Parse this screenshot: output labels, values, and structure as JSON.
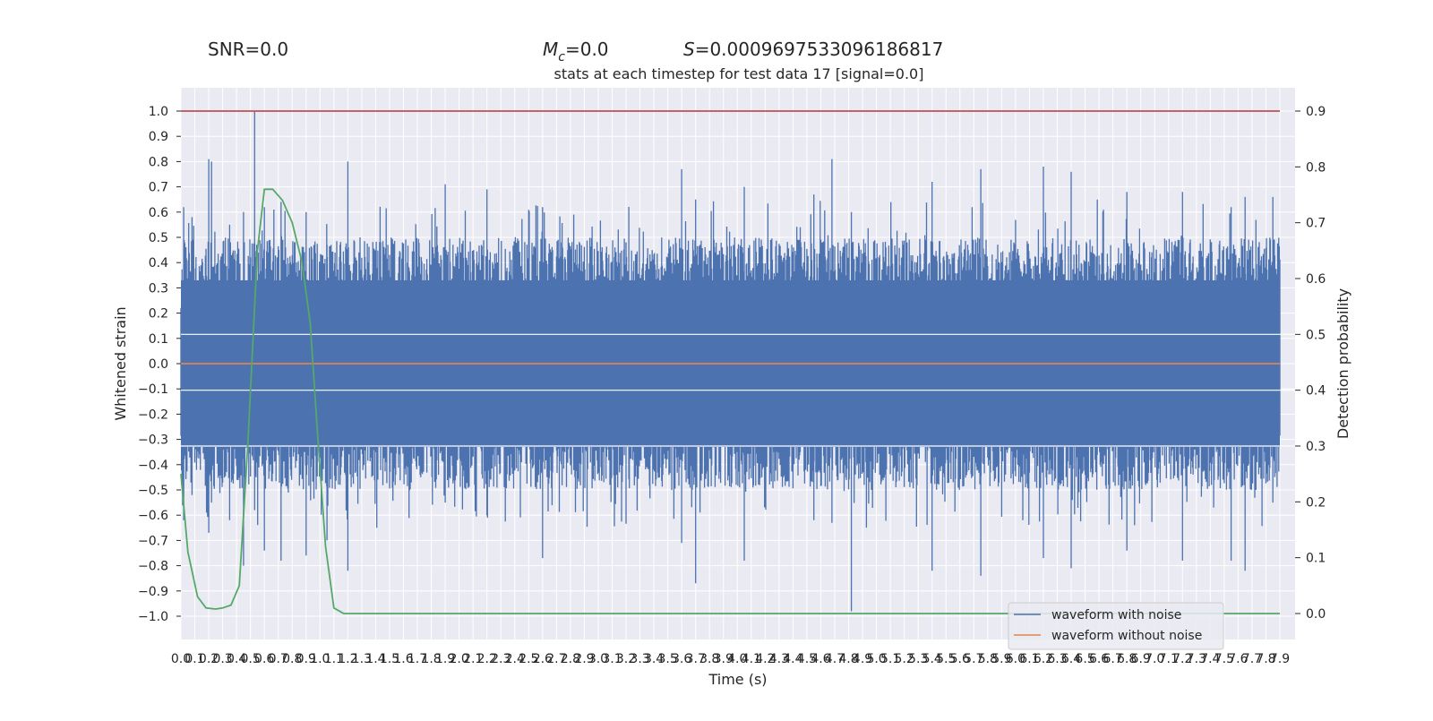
{
  "header": {
    "snr_label": "SNR=0.0",
    "mc_symbol": "M",
    "mc_subscript": "c",
    "mc_value": "=0.0",
    "s_symbol": "S",
    "s_value": "=0.0009697533096186817"
  },
  "chart_data": {
    "type": "line",
    "title": "stats at each timestep for test data 17 [signal=0.0]",
    "xlabel": "Time (s)",
    "ylabel": "Whitened strain",
    "y2label": "Detection probability",
    "xlim": [
      0,
      7.9
    ],
    "ylim": [
      -1.0,
      1.0
    ],
    "y2lim": [
      0.0,
      0.9
    ],
    "x_ticks": [
      "0.0",
      "0.1",
      "0.2",
      "0.3",
      "0.4",
      "0.5",
      "0.6",
      "0.7",
      "0.8",
      "0.9",
      "1.0",
      "1.1",
      "1.2",
      "1.3",
      "1.4",
      "1.5",
      "1.6",
      "1.7",
      "1.8",
      "1.9",
      "2.0",
      "2.1",
      "2.2",
      "2.3",
      "2.4",
      "2.5",
      "2.6",
      "2.7",
      "2.8",
      "2.9",
      "3.0",
      "3.1",
      "3.2",
      "3.3",
      "3.4",
      "3.5",
      "3.6",
      "3.7",
      "3.8",
      "3.9",
      "4.0",
      "4.1",
      "4.2",
      "4.3",
      "4.4",
      "4.5",
      "4.6",
      "4.7",
      "4.8",
      "4.9",
      "5.0",
      "5.1",
      "5.2",
      "5.3",
      "5.4",
      "5.5",
      "5.6",
      "5.7",
      "5.8",
      "5.9",
      "6.0",
      "6.1",
      "6.2",
      "6.3",
      "6.4",
      "6.5",
      "6.6",
      "6.7",
      "6.8",
      "6.9",
      "7.0",
      "7.1",
      "7.2",
      "7.3",
      "7.4",
      "7.5",
      "7.6",
      "7.7",
      "7.8",
      "7.9"
    ],
    "y_ticks": [
      "1.0",
      "0.9",
      "0.8",
      "0.7",
      "0.6",
      "0.5",
      "0.4",
      "0.3",
      "0.2",
      "0.1",
      "0.0",
      "−0.1",
      "−0.2",
      "−0.3",
      "−0.4",
      "−0.5",
      "−0.6",
      "−0.7",
      "−0.8",
      "−0.9",
      "−1.0"
    ],
    "y2_ticks": [
      "0.9",
      "0.8",
      "0.7",
      "0.6",
      "0.5",
      "0.4",
      "0.3",
      "0.2",
      "0.1",
      "0.0"
    ],
    "grid": true,
    "legend_position": "bottom-right",
    "series": [
      {
        "name": "waveform with noise",
        "color": "#4c72b0",
        "axis": "left",
        "peaks": [
          [
            0.02,
            0.62,
            -0.62
          ],
          [
            0.08,
            0.58,
            -0.52
          ],
          [
            0.2,
            0.81,
            -0.67
          ],
          [
            0.22,
            0.8,
            -0.55
          ],
          [
            0.35,
            0.55,
            -0.62
          ],
          [
            0.45,
            0.6,
            -0.8
          ],
          [
            0.53,
            1.0,
            -0.58
          ],
          [
            0.6,
            0.62,
            -0.74
          ],
          [
            0.72,
            0.64,
            -0.78
          ],
          [
            0.9,
            0.6,
            -0.76
          ],
          [
            1.05,
            0.47,
            -0.7
          ],
          [
            1.2,
            0.8,
            -0.82
          ],
          [
            1.9,
            0.71,
            -0.55
          ],
          [
            2.2,
            0.69,
            -0.6
          ],
          [
            2.6,
            0.62,
            -0.77
          ],
          [
            3.6,
            0.77,
            -0.71
          ],
          [
            3.7,
            0.65,
            -0.87
          ],
          [
            4.05,
            0.7,
            -0.78
          ],
          [
            4.55,
            0.67,
            -0.62
          ],
          [
            4.68,
            0.81,
            -0.63
          ],
          [
            4.82,
            0.6,
            -0.98
          ],
          [
            5.4,
            0.72,
            -0.82
          ],
          [
            5.75,
            0.77,
            -0.84
          ],
          [
            6.2,
            0.78,
            -0.77
          ],
          [
            6.4,
            0.76,
            -0.81
          ],
          [
            6.8,
            0.68,
            -0.74
          ],
          [
            7.2,
            0.68,
            -0.78
          ],
          [
            7.55,
            0.62,
            -0.78
          ],
          [
            7.65,
            0.66,
            -0.82
          ],
          [
            7.85,
            0.66,
            -0.55
          ]
        ]
      },
      {
        "name": "waveform without noise",
        "color": "#dd8452",
        "axis": "left",
        "x": [
          0.0,
          7.9
        ],
        "y": [
          0.0,
          0.0
        ]
      },
      {
        "color": "#55a868",
        "axis": "right",
        "x": [
          0.0,
          0.05,
          0.12,
          0.18,
          0.25,
          0.3,
          0.36,
          0.42,
          0.48,
          0.55,
          0.6,
          0.66,
          0.73,
          0.8,
          0.87,
          0.93,
          0.98,
          1.04,
          1.1,
          1.17,
          1.25,
          7.9
        ],
        "y": [
          0.25,
          0.11,
          0.03,
          0.01,
          0.008,
          0.01,
          0.015,
          0.05,
          0.3,
          0.65,
          0.76,
          0.76,
          0.74,
          0.7,
          0.63,
          0.52,
          0.33,
          0.12,
          0.01,
          0.0,
          0.0,
          0.0
        ]
      },
      {
        "color": "#c44e52",
        "axis": "left",
        "x": [
          0.0,
          7.9
        ],
        "y": [
          1.0,
          1.0
        ]
      }
    ]
  }
}
